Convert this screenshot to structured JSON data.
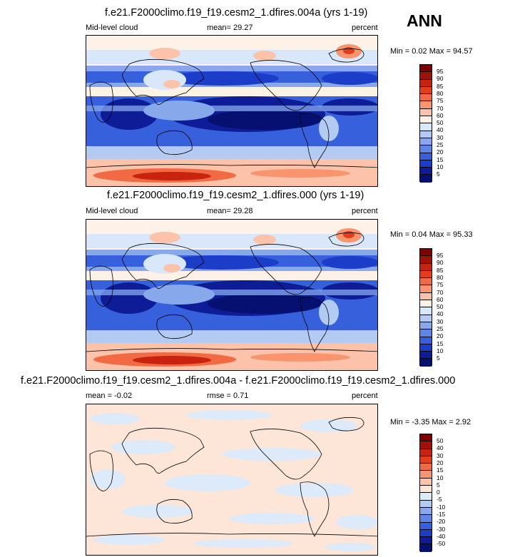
{
  "season": "ANN",
  "panels": [
    {
      "title": "f.e21.F2000climo.f19_f19.cesm2_1.dfires.004a (yrs 1-19)",
      "left_label": "Mid-level cloud",
      "center_label": "mean=  29.27",
      "units": "percent",
      "minmax": "Min =   0.02 Max =  94.57",
      "colorbar_levels": [
        "95",
        "90",
        "85",
        "80",
        "75",
        "70",
        "60",
        "50",
        "40",
        "30",
        "25",
        "20",
        "15",
        "10",
        "5"
      ]
    },
    {
      "title": "f.e21.F2000climo.f19_f19.cesm2_1.dfires.000 (yrs 1-19)",
      "left_label": "Mid-level cloud",
      "center_label": "mean=  29.28",
      "units": "percent",
      "minmax": "Min =   0.04 Max =  95.33",
      "colorbar_levels": [
        "95",
        "90",
        "85",
        "80",
        "75",
        "70",
        "60",
        "50",
        "40",
        "30",
        "25",
        "20",
        "15",
        "10",
        "5"
      ]
    },
    {
      "title": "f.e21.F2000climo.f19_f19.cesm2_1.dfires.004a - f.e21.F2000climo.f19_f19.cesm2_1.dfires.000",
      "left_label": "mean =  -0.02",
      "center_label": "rmse =   0.71",
      "units": "percent",
      "minmax": "Min =  -3.35 Max =   2.92",
      "colorbar_levels": [
        "50",
        "40",
        "30",
        "20",
        "15",
        "10",
        "5",
        "0",
        "-5",
        "-10",
        "-15",
        "-20",
        "-30",
        "-40",
        "-50"
      ]
    }
  ],
  "colors": {
    "cloud_scale": [
      "#7f0000",
      "#a01208",
      "#c8230f",
      "#e43d1c",
      "#f26a44",
      "#f8946e",
      "#fcc3aa",
      "#fdf1e8",
      "#d8e8fa",
      "#b3cbf2",
      "#87a9ec",
      "#5e86e6",
      "#3760dc",
      "#1b3dc8",
      "#0e1c98",
      "#061070"
    ],
    "diff_scale": [
      "#7f0000",
      "#a01208",
      "#c8230f",
      "#e43d1c",
      "#f26a44",
      "#f8946e",
      "#fcc3aa",
      "#fde6d8",
      "#ddeafa",
      "#b3cbf2",
      "#87a9ec",
      "#5e86e6",
      "#3760dc",
      "#1b3dc8",
      "#0e1c98",
      "#061070"
    ]
  }
}
